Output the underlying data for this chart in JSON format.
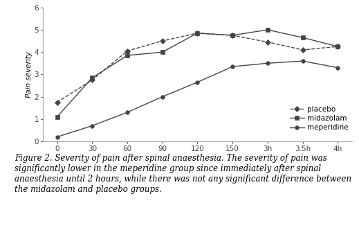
{
  "x_labels": [
    "0",
    "30",
    "60",
    "90",
    "120",
    "150",
    "3h",
    "3.5h",
    "4h"
  ],
  "x_values": [
    0,
    1,
    2,
    3,
    4,
    5,
    6,
    7,
    8
  ],
  "placebo": [
    1.75,
    2.75,
    4.05,
    4.5,
    4.85,
    4.75,
    4.45,
    4.1,
    4.25
  ],
  "midazolam": [
    1.1,
    2.85,
    3.85,
    4.0,
    4.85,
    4.75,
    5.0,
    4.65,
    4.25
  ],
  "meperidine": [
    0.2,
    0.7,
    1.3,
    2.0,
    2.65,
    3.35,
    3.5,
    3.6,
    3.3
  ],
  "ylabel": "Pain severity",
  "ylim": [
    0,
    6
  ],
  "yticks": [
    0,
    1,
    2,
    3,
    4,
    5,
    6
  ],
  "figure_caption_bold": "Figure 2.",
  "figure_caption": " Severity of pain after spinal anaesthesia. The severity of pain was significantly lower in the meperidine group since immediately after spinal anaesthesia until 2 hours, while there was not any significant difference between the midazolam and placebo groups.",
  "line_color": "#444444",
  "background_color": "#ffffff",
  "caption_fontsize": 8.5,
  "axis_fontsize": 7.5,
  "legend_fontsize": 7.5
}
